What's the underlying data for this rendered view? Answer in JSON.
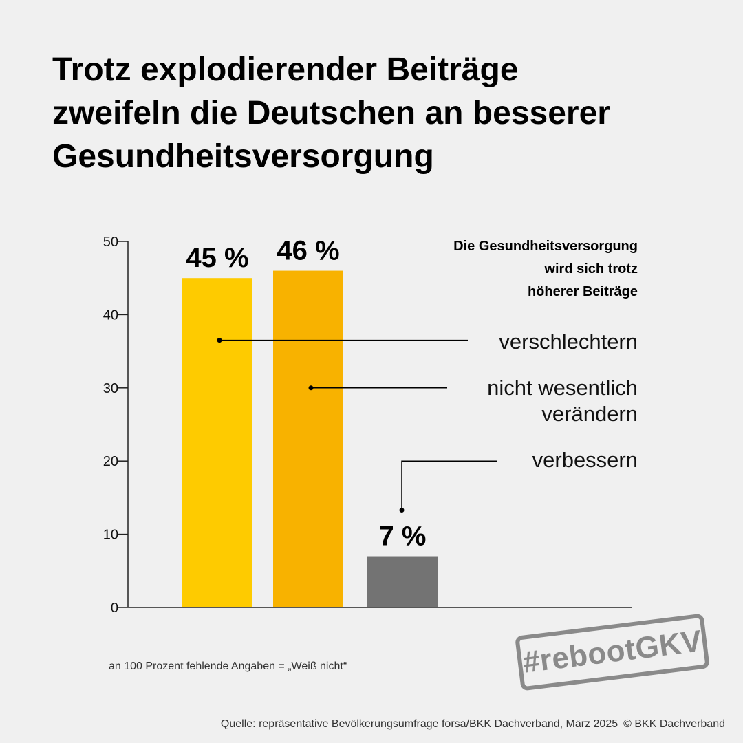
{
  "chart_data": {
    "type": "bar",
    "title": "Trotz explodierender Beiträge zweifeln die Deutschen an besserer Gesundheitsversorgung",
    "title_lines": [
      "Trotz explodierender Beiträge",
      "zweifeln die Deutschen an besserer",
      "Gesundheitsversorgung"
    ],
    "legend_title_lines": [
      "Die Gesundheitsversorgung",
      "wird sich trotz",
      "höherer Beiträge"
    ],
    "categories": [
      "verschlechtern",
      "nicht wesentlich verändern",
      "verbessern"
    ],
    "category_label_lines": [
      [
        "verschlechtern"
      ],
      [
        "nicht wesentlich",
        "verändern"
      ],
      [
        "verbessern"
      ]
    ],
    "values": [
      45,
      46,
      7
    ],
    "data_labels": [
      "45 %",
      "46 %",
      "7 %"
    ],
    "colors": [
      "#fecb00",
      "#f8b200",
      "#737373"
    ],
    "y_ticks": [
      0,
      10,
      20,
      30,
      40,
      50
    ],
    "ylim": [
      0,
      50
    ],
    "xlabel": "",
    "ylabel": "",
    "grid": false,
    "legend": "right"
  },
  "footnote": "an 100 Prozent fehlende Angaben = „Weiß nicht“",
  "stamp": "#rebootGKV",
  "source": {
    "text": "Quelle: repräsentative Bevölkerungsumfrage forsa/BKK Dachverband, März 2025",
    "copyright": "© BKK Dachverband"
  }
}
